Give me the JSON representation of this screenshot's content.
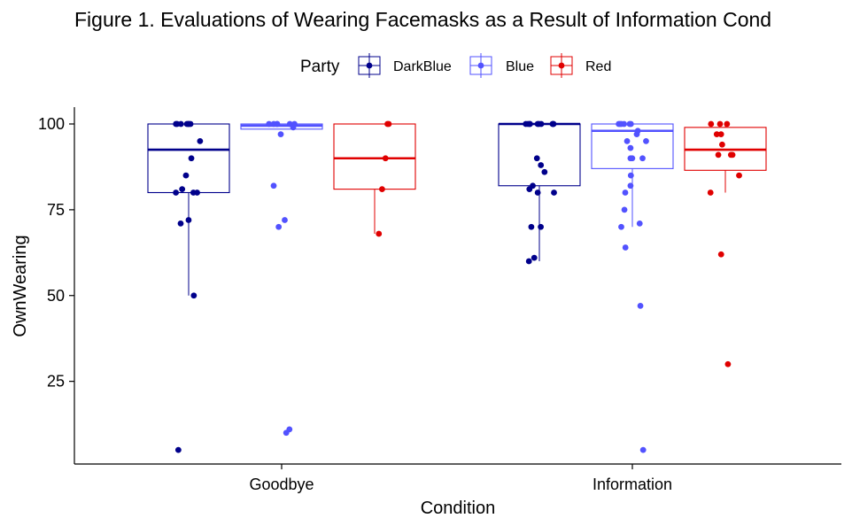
{
  "chart_data": {
    "type": "box",
    "title": "Figure 1. Evaluations of Wearing Facemasks as a Result of Information Cond",
    "xlabel": "Condition",
    "ylabel": "OwnWearing",
    "categories": [
      "Goodbye",
      "Information"
    ],
    "ylim": [
      0,
      105
    ],
    "yticks": [
      25,
      50,
      75,
      100
    ],
    "grid": false,
    "legend": {
      "title": "Party",
      "placement": "top",
      "entries": [
        {
          "label": "DarkBlue",
          "color": "#00008b"
        },
        {
          "label": "Blue",
          "color": "#5252ff"
        },
        {
          "label": "Red",
          "color": "#e00000"
        }
      ]
    },
    "series": [
      {
        "name": "DarkBlue",
        "color": "#00008b",
        "boxes": [
          {
            "category": "Goodbye",
            "lower_whisker": 50,
            "q1": 80,
            "median": 92.5,
            "q3": 100,
            "upper_whisker": 100,
            "outliers": [
              5
            ],
            "points": [
              100,
              100,
              100,
              100,
              100,
              100,
              100,
              95,
              90,
              85,
              81,
              80,
              80,
              80,
              72,
              71,
              50,
              5
            ]
          },
          {
            "category": "Information",
            "lower_whisker": 60,
            "q1": 82,
            "median": 100,
            "q3": 100,
            "upper_whisker": 100,
            "outliers": [],
            "points": [
              100,
              100,
              100,
              100,
              100,
              100,
              100,
              100,
              100,
              100,
              90,
              88,
              86,
              82,
              81,
              80,
              80,
              70,
              70,
              61,
              60
            ]
          }
        ]
      },
      {
        "name": "Blue",
        "color": "#5252ff",
        "boxes": [
          {
            "category": "Goodbye",
            "lower_whisker": 98.5,
            "q1": 98.5,
            "median": 99.5,
            "q3": 100,
            "upper_whisker": 100,
            "outliers": [
              97,
              82,
              72,
              70,
              11,
              10
            ],
            "points": [
              100,
              100,
              100,
              100,
              100,
              100,
              99,
              97,
              82,
              72,
              70,
              11,
              10
            ]
          },
          {
            "category": "Information",
            "lower_whisker": 70,
            "q1": 87,
            "median": 98,
            "q3": 100,
            "upper_whisker": 100,
            "outliers": [
              64,
              47,
              5
            ],
            "points": [
              100,
              100,
              100,
              100,
              100,
              100,
              98,
              97,
              95,
              95,
              93,
              90,
              90,
              90,
              85,
              82,
              80,
              75,
              71,
              70,
              64,
              47,
              5
            ]
          }
        ]
      },
      {
        "name": "Red",
        "color": "#e00000",
        "boxes": [
          {
            "category": "Goodbye",
            "lower_whisker": 68,
            "q1": 81,
            "median": 90,
            "q3": 100,
            "upper_whisker": 100,
            "outliers": [],
            "points": [
              100,
              100,
              90,
              81,
              68
            ]
          },
          {
            "category": "Information",
            "lower_whisker": 80,
            "q1": 86.5,
            "median": 92.5,
            "q3": 99,
            "upper_whisker": 100,
            "outliers": [
              62,
              30
            ],
            "points": [
              100,
              100,
              100,
              97,
              97,
              94,
              91,
              91,
              91,
              85,
              80,
              62,
              30
            ]
          }
        ]
      }
    ]
  }
}
